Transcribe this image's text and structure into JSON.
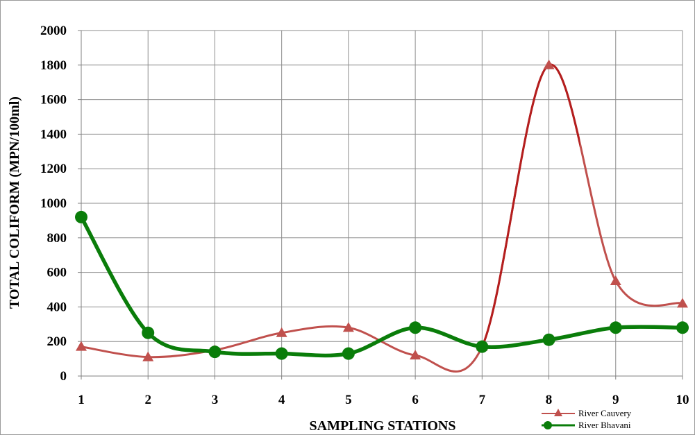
{
  "chart_data": {
    "type": "line",
    "x": [
      1,
      2,
      3,
      4,
      5,
      6,
      7,
      8,
      9,
      10
    ],
    "xlabel": "SAMPLING STATIONS",
    "ylabel": "TOTAL COLIFORM (MPN/100ml)",
    "ylim": [
      0,
      2000
    ],
    "yticks": [
      0,
      200,
      400,
      600,
      800,
      1000,
      1200,
      1400,
      1600,
      1800,
      2000
    ],
    "xticks": [
      1,
      2,
      3,
      4,
      5,
      6,
      7,
      8,
      9,
      10
    ],
    "grid": true,
    "legend_position": "bottom-right",
    "series": [
      {
        "name": "River Cauvery",
        "values": [
          170,
          110,
          150,
          250,
          280,
          120,
          170,
          1800,
          550,
          420
        ],
        "color": "#c0504d",
        "peak_color": "#b41e1e",
        "marker": "triangle"
      },
      {
        "name": "River Bhavani",
        "values": [
          920,
          250,
          140,
          130,
          130,
          280,
          170,
          210,
          280,
          280
        ],
        "color": "#0a7d0a",
        "marker": "circle"
      }
    ]
  }
}
